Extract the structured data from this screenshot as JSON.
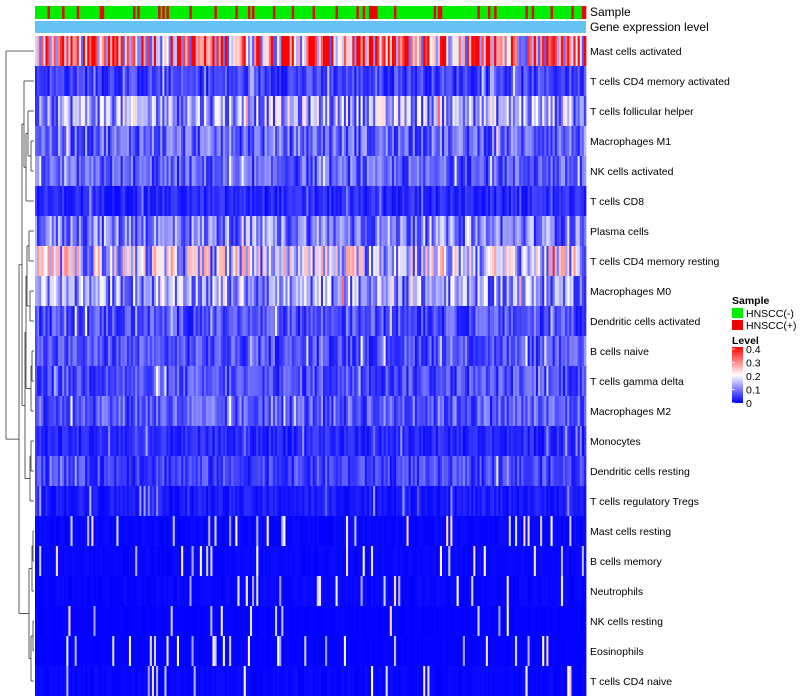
{
  "colors": {
    "hnscc_neg": "#00ee00",
    "hnscc_pos": "#ee0000",
    "gene_expression_bar": "#66c2f0",
    "scale_low": "#0000ff",
    "scale_mid": "#ffffff",
    "scale_high": "#ff0000"
  },
  "chart_data": {
    "type": "heatmap",
    "title": "",
    "annotation_tracks": [
      "Sample",
      "Gene expression level"
    ],
    "rows": [
      "Mast cells activated",
      "T cells CD4 memory activated",
      "T cells follicular helper",
      "Macrophages M1",
      "NK cells activated",
      "T cells CD8",
      "Plasma cells",
      "T cells CD4 memory resting",
      "Macrophages M0",
      "Dendritic cells activated",
      "B cells naive",
      "T cells gamma delta",
      "Macrophages M2",
      "Monocytes",
      "Dendritic cells resting",
      "T cells regulatory  Tregs",
      "Mast cells resting",
      "B cells memory",
      "Neutrophils",
      "NK cells resting",
      "Eosinophils",
      "T cells CD4 naive"
    ],
    "row_mean_fraction": [
      0.28,
      0.05,
      0.13,
      0.08,
      0.07,
      0.03,
      0.1,
      0.16,
      0.12,
      0.06,
      0.06,
      0.06,
      0.07,
      0.03,
      0.05,
      0.02,
      0.01,
      0.01,
      0.01,
      0.005,
      0.005,
      0.01
    ],
    "sample_count": 264,
    "sample_groups": [
      "HNSCC(-)",
      "HNSCC(+)"
    ],
    "sample_pos_fraction": 0.2,
    "legend": {
      "sample_title": "Sample",
      "sample_entries": [
        "HNSCC(-)",
        "HNSCC(+)"
      ],
      "level_title": "Level",
      "level_ticks": [
        "0.4",
        "0.3",
        "0.2",
        "0.1",
        "0"
      ],
      "level_range": [
        0,
        0.4
      ]
    }
  }
}
